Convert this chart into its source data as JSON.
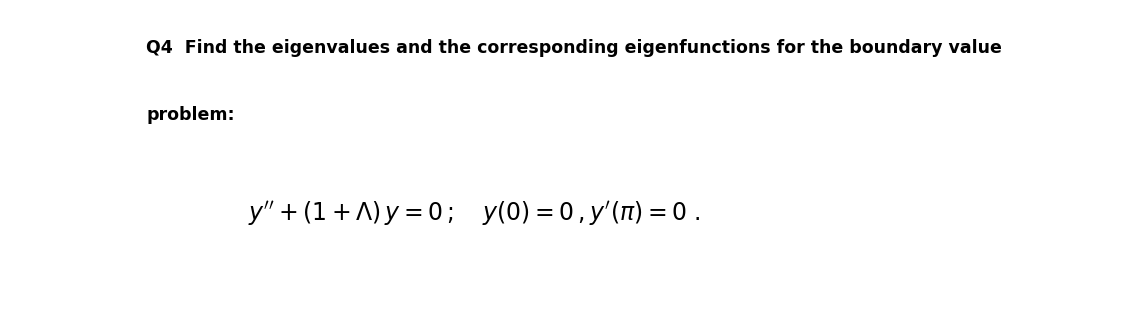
{
  "bg_color": "#ffffff",
  "text_color": "#000000",
  "heading_line1": "Q4  Find the eigenvalues and the corresponding eigenfunctions for the boundary value",
  "heading_line2": "problem:",
  "heading_fontsize": 12.5,
  "heading_fontweight": "bold",
  "eq_text": "$y'' + (1 + \\Lambda)\\,y = 0\\,;\\quad y(0) = 0\\,,y'(\\pi) = 0\\;.$",
  "eq_fontsize": 17,
  "eq_fontweight": "bold",
  "fig_width": 11.25,
  "fig_height": 3.22,
  "dpi": 100
}
